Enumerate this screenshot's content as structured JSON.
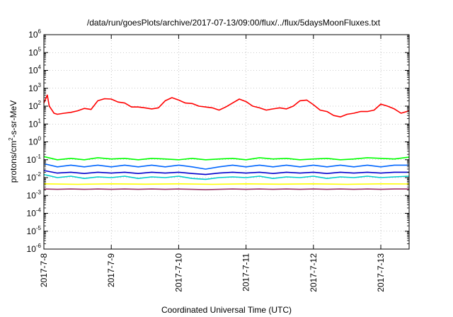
{
  "chart_data": {
    "type": "line",
    "title": "/data/run/goesPlots/archive/2017-07-13/09:00/flux/../flux/5daysMoonFluxes.txt",
    "xlabel": "Coordinated Universal Time (UTC)",
    "ylabel": {
      "pre": "protons/cm",
      "sup": "2",
      "post": "-s-sr-MeV"
    },
    "yscale": "log",
    "ylim": [
      1e-06,
      1000000.0
    ],
    "xlim": [
      0,
      5.42
    ],
    "grid": true,
    "y_ticks": [
      {
        "value": -6,
        "base": "10",
        "exp": "-6"
      },
      {
        "value": -5,
        "base": "10",
        "exp": "-5"
      },
      {
        "value": -4,
        "base": "10",
        "exp": "-4"
      },
      {
        "value": -3,
        "base": "10",
        "exp": "-3"
      },
      {
        "value": -2,
        "base": "10",
        "exp": "-2"
      },
      {
        "value": -1,
        "base": "10",
        "exp": "-1"
      },
      {
        "value": 0,
        "base": "10",
        "exp": "0"
      },
      {
        "value": 1,
        "base": "10",
        "exp": "1"
      },
      {
        "value": 2,
        "base": "10",
        "exp": "2"
      },
      {
        "value": 3,
        "base": "10",
        "exp": "3"
      },
      {
        "value": 4,
        "base": "10",
        "exp": "4"
      },
      {
        "value": 5,
        "base": "10",
        "exp": "5"
      },
      {
        "value": 6,
        "base": "10",
        "exp": "6"
      }
    ],
    "x_ticks": [
      {
        "value": 0,
        "label": "2017-7-8"
      },
      {
        "value": 1,
        "label": "2017-7-9"
      },
      {
        "value": 2,
        "label": "2017-7-10"
      },
      {
        "value": 3,
        "label": "2017-7-11"
      },
      {
        "value": 4,
        "label": "2017-7-12"
      },
      {
        "value": 5,
        "label": "2017-7-13"
      }
    ],
    "series": [
      {
        "color": "#ff0000",
        "x": [
          0,
          0.05,
          0.08,
          0.12,
          0.15,
          0.2,
          0.3,
          0.4,
          0.5,
          0.6,
          0.7,
          0.8,
          0.9,
          1.0,
          1.1,
          1.2,
          1.3,
          1.4,
          1.5,
          1.6,
          1.7,
          1.8,
          1.9,
          2.0,
          2.1,
          2.2,
          2.3,
          2.4,
          2.5,
          2.6,
          2.7,
          2.8,
          2.9,
          3.0,
          3.1,
          3.2,
          3.3,
          3.4,
          3.5,
          3.6,
          3.7,
          3.8,
          3.9,
          4.0,
          4.1,
          4.2,
          4.3,
          4.4,
          4.5,
          4.6,
          4.7,
          4.8,
          4.9,
          5.0,
          5.1,
          5.2,
          5.3,
          5.42
        ],
        "values": [
          150,
          420,
          100,
          60,
          40,
          35,
          40,
          45,
          55,
          75,
          65,
          200,
          260,
          250,
          170,
          150,
          90,
          90,
          80,
          70,
          80,
          200,
          300,
          220,
          150,
          140,
          100,
          90,
          80,
          60,
          90,
          150,
          250,
          180,
          100,
          80,
          60,
          70,
          80,
          70,
          100,
          200,
          220,
          120,
          60,
          50,
          30,
          25,
          35,
          40,
          50,
          50,
          60,
          130,
          100,
          70,
          40,
          55
        ]
      },
      {
        "color": "#00ff00",
        "x": [
          0,
          0.2,
          0.4,
          0.6,
          0.8,
          1.0,
          1.2,
          1.4,
          1.6,
          1.8,
          2.0,
          2.2,
          2.4,
          2.6,
          2.8,
          3.0,
          3.2,
          3.4,
          3.6,
          3.8,
          4.0,
          4.2,
          4.4,
          4.6,
          4.8,
          5.0,
          5.2,
          5.42
        ],
        "values": [
          0.15,
          0.1,
          0.12,
          0.1,
          0.13,
          0.11,
          0.12,
          0.1,
          0.12,
          0.11,
          0.1,
          0.12,
          0.1,
          0.11,
          0.12,
          0.1,
          0.13,
          0.11,
          0.12,
          0.1,
          0.11,
          0.12,
          0.1,
          0.11,
          0.13,
          0.12,
          0.11,
          0.14
        ]
      },
      {
        "color": "#0066ff",
        "x": [
          0,
          0.2,
          0.4,
          0.6,
          0.8,
          1.0,
          1.2,
          1.4,
          1.6,
          1.8,
          2.0,
          2.2,
          2.4,
          2.6,
          2.8,
          3.0,
          3.2,
          3.4,
          3.6,
          3.8,
          4.0,
          4.2,
          4.4,
          4.6,
          4.8,
          5.0,
          5.2,
          5.42
        ],
        "values": [
          0.06,
          0.04,
          0.05,
          0.04,
          0.05,
          0.04,
          0.05,
          0.04,
          0.05,
          0.04,
          0.05,
          0.04,
          0.03,
          0.04,
          0.05,
          0.04,
          0.05,
          0.04,
          0.05,
          0.04,
          0.05,
          0.04,
          0.05,
          0.04,
          0.05,
          0.04,
          0.05,
          0.05
        ]
      },
      {
        "color": "#00cccc",
        "x": [
          0,
          0.2,
          0.4,
          0.6,
          0.8,
          1.0,
          1.2,
          1.4,
          1.6,
          1.8,
          2.0,
          2.2,
          2.4,
          2.6,
          2.8,
          3.0,
          3.2,
          3.4,
          3.6,
          3.8,
          4.0,
          4.2,
          4.4,
          4.6,
          4.8,
          5.0,
          5.2,
          5.42
        ],
        "values": [
          0.015,
          0.01,
          0.012,
          0.009,
          0.011,
          0.01,
          0.012,
          0.009,
          0.011,
          0.01,
          0.012,
          0.009,
          0.008,
          0.01,
          0.011,
          0.01,
          0.012,
          0.009,
          0.011,
          0.01,
          0.012,
          0.009,
          0.011,
          0.01,
          0.012,
          0.01,
          0.011,
          0.012
        ]
      },
      {
        "color": "#0000cc",
        "x": [
          0,
          0.2,
          0.4,
          0.6,
          0.8,
          1.0,
          1.2,
          1.4,
          1.6,
          1.8,
          2.0,
          2.2,
          2.4,
          2.6,
          2.8,
          3.0,
          3.2,
          3.4,
          3.6,
          3.8,
          4.0,
          4.2,
          4.4,
          4.6,
          4.8,
          5.0,
          5.2,
          5.42
        ],
        "values": [
          0.025,
          0.018,
          0.02,
          0.017,
          0.02,
          0.018,
          0.02,
          0.017,
          0.02,
          0.018,
          0.02,
          0.017,
          0.015,
          0.018,
          0.02,
          0.018,
          0.02,
          0.017,
          0.02,
          0.018,
          0.02,
          0.017,
          0.02,
          0.018,
          0.02,
          0.018,
          0.02,
          0.02
        ]
      },
      {
        "color": "#ffff00",
        "x": [
          0,
          0.5,
          1.0,
          1.5,
          2.0,
          2.5,
          3.0,
          3.5,
          4.0,
          4.5,
          5.0,
          5.42
        ],
        "values": [
          0.0045,
          0.0042,
          0.0045,
          0.0043,
          0.0045,
          0.0042,
          0.0045,
          0.0043,
          0.0045,
          0.0042,
          0.0045,
          0.0044
        ]
      },
      {
        "color": "#993366",
        "x": [
          0,
          0.2,
          0.4,
          0.6,
          0.8,
          1.0,
          1.2,
          1.4,
          1.6,
          1.8,
          2.0,
          2.2,
          2.4,
          2.6,
          2.8,
          3.0,
          3.2,
          3.4,
          3.6,
          3.8,
          4.0,
          4.2,
          4.4,
          4.6,
          4.8,
          5.0,
          5.2,
          5.42
        ],
        "values": [
          0.0023,
          0.0022,
          0.0023,
          0.0022,
          0.0023,
          0.0022,
          0.0023,
          0.0022,
          0.0023,
          0.0022,
          0.0023,
          0.0022,
          0.0021,
          0.0022,
          0.0023,
          0.0022,
          0.0023,
          0.0022,
          0.0023,
          0.0022,
          0.0023,
          0.0022,
          0.0023,
          0.0022,
          0.0023,
          0.0022,
          0.0023,
          0.0023
        ]
      }
    ]
  }
}
